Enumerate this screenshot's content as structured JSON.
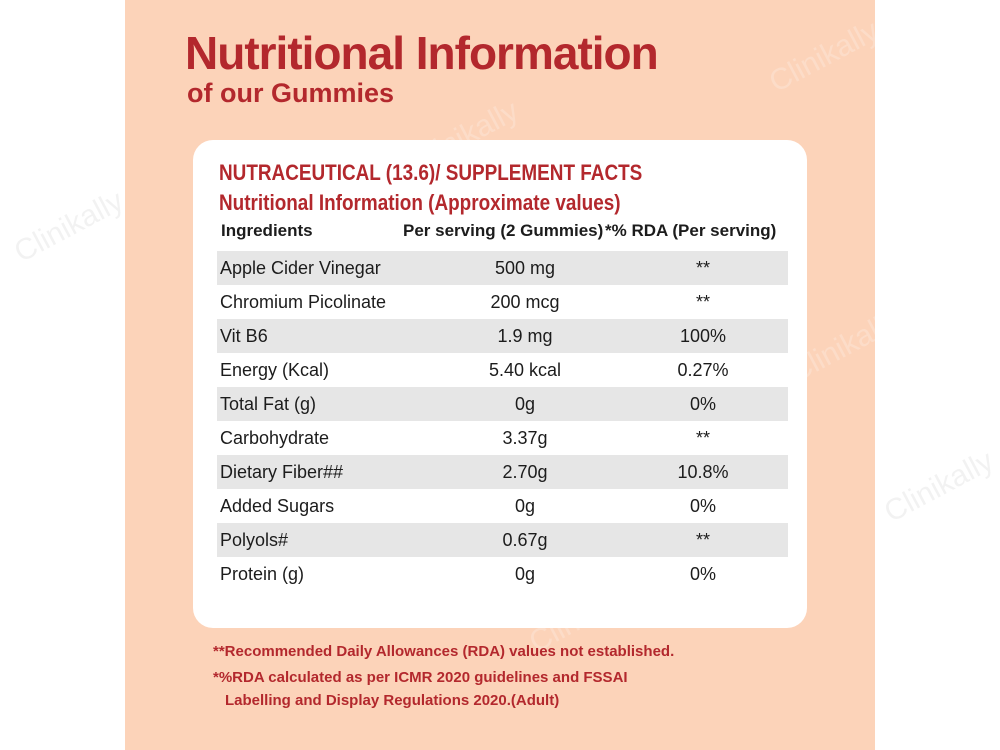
{
  "header": {
    "title": "Nutritional Information",
    "subtitle": "of our Gummies"
  },
  "card": {
    "heading": "NUTRACEUTICAL (13.6)/ SUPPLEMENT FACTS",
    "subheading": "Nutritional Information (Approximate values)",
    "columns": [
      "Ingredients",
      "Per serving (2 Gummies)",
      "*% RDA (Per serving)"
    ],
    "rows": [
      {
        "name": "Apple Cider Vinegar",
        "amount": "500 mg",
        "rda": "**"
      },
      {
        "name": "Chromium Picolinate",
        "amount": "200 mcg",
        "rda": "**"
      },
      {
        "name": "Vit B6",
        "amount": "1.9 mg",
        "rda": "100%"
      },
      {
        "name": "Energy (Kcal)",
        "amount": "5.40 kcal",
        "rda": "0.27%"
      },
      {
        "name": "Total Fat (g)",
        "amount": "0g",
        "rda": "0%"
      },
      {
        "name": "Carbohydrate",
        "amount": "3.37g",
        "rda": "**"
      },
      {
        "name": "Dietary Fiber##",
        "amount": "2.70g",
        "rda": "10.8%"
      },
      {
        "name": "Added Sugars",
        "amount": "0g",
        "rda": "0%"
      },
      {
        "name": "Polyols#",
        "amount": "0.67g",
        "rda": "**"
      },
      {
        "name": "Protein (g)",
        "amount": "0g",
        "rda": "0%"
      }
    ]
  },
  "footnotes": {
    "line1": "**Recommended Daily Allowances (RDA) values not established.",
    "line2": "*%RDA calculated as per ICMR 2020 guidelines and FSSAI",
    "line3": "Labelling and Display Regulations 2020.(Adult)"
  },
  "watermark": {
    "text": "Clinikally"
  },
  "colors": {
    "accent": "#b3282d",
    "panel_bg": "#fcd3b9",
    "row_shade": "#e6e6e6"
  }
}
